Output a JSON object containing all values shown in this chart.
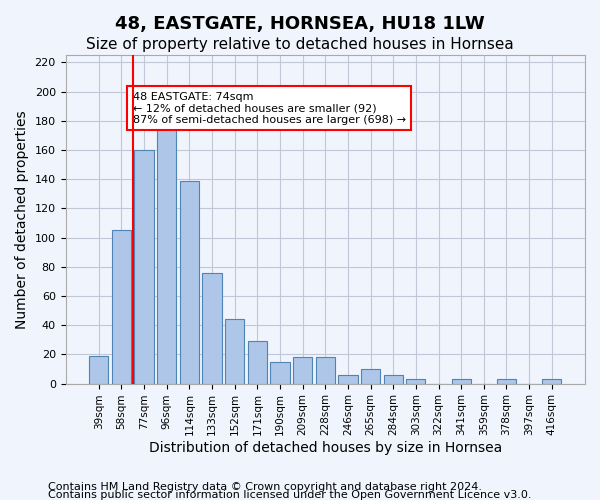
{
  "title1": "48, EASTGATE, HORNSEA, HU18 1LW",
  "title2": "Size of property relative to detached houses in Hornsea",
  "xlabel": "Distribution of detached houses by size in Hornsea",
  "ylabel": "Number of detached properties",
  "footer1": "Contains HM Land Registry data © Crown copyright and database right 2024.",
  "footer2": "Contains public sector information licensed under the Open Government Licence v3.0.",
  "categories": [
    "39sqm",
    "58sqm",
    "77sqm",
    "96sqm",
    "114sqm",
    "133sqm",
    "152sqm",
    "171sqm",
    "190sqm",
    "209sqm",
    "228sqm",
    "246sqm",
    "265sqm",
    "284sqm",
    "303sqm",
    "322sqm",
    "341sqm",
    "359sqm",
    "378sqm",
    "397sqm",
    "416sqm"
  ],
  "values": [
    19,
    105,
    160,
    174,
    139,
    76,
    44,
    29,
    15,
    18,
    18,
    6,
    10,
    6,
    3,
    0,
    3,
    0,
    3,
    0,
    3
  ],
  "bar_color": "#aec6e8",
  "bar_edge_color": "#4f85b5",
  "grid_color": "#c0c8d8",
  "background_color": "#f0f4fc",
  "red_line_x": 1.5,
  "annotation_text": "48 EASTGATE: 74sqm\n← 12% of detached houses are smaller (92)\n87% of semi-detached houses are larger (698) →",
  "annotation_box_color": "white",
  "annotation_box_edge_color": "red",
  "ylim": [
    0,
    225
  ],
  "yticks": [
    0,
    20,
    40,
    60,
    80,
    100,
    120,
    140,
    160,
    180,
    200,
    220
  ],
  "title1_fontsize": 13,
  "title2_fontsize": 11,
  "xlabel_fontsize": 10,
  "ylabel_fontsize": 10,
  "footer_fontsize": 8
}
